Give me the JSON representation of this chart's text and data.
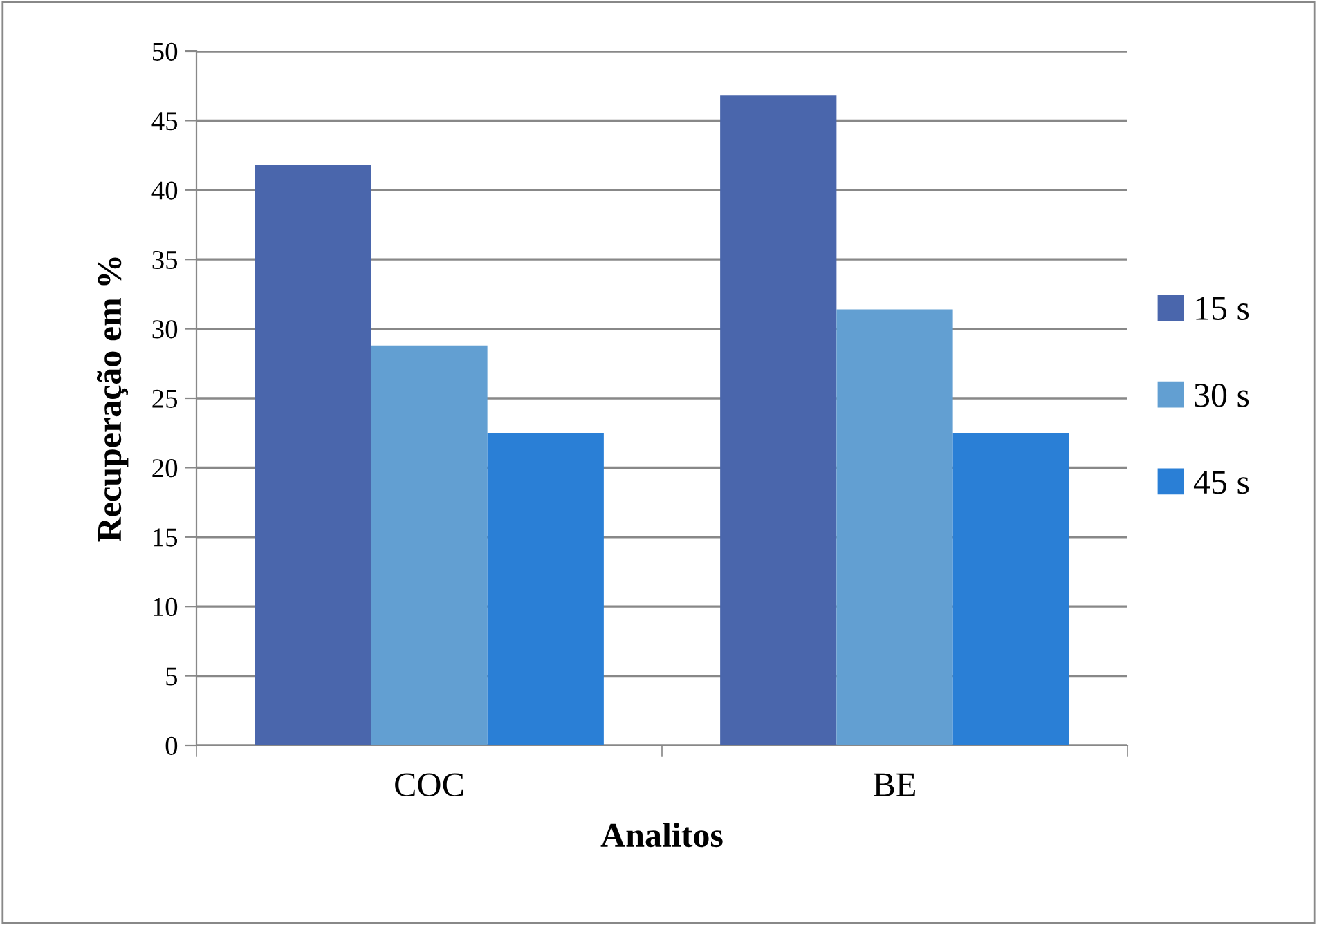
{
  "chart_data": {
    "type": "bar",
    "xlabel": "Analitos",
    "ylabel": "Recuperação em %",
    "categories": [
      "COC",
      "BE"
    ],
    "series": [
      {
        "name": "15 s",
        "color": "#4a66ac",
        "values": [
          41.8,
          46.8
        ]
      },
      {
        "name": "30 s",
        "color": "#629fd2",
        "values": [
          28.8,
          31.4
        ]
      },
      {
        "name": "45 s",
        "color": "#2a7fd6",
        "values": [
          22.5,
          22.5
        ]
      }
    ],
    "ylim": [
      0,
      50
    ],
    "yticks": [
      0,
      5,
      10,
      15,
      20,
      25,
      30,
      35,
      40,
      45,
      50
    ],
    "grid": "y",
    "legend": "right"
  }
}
